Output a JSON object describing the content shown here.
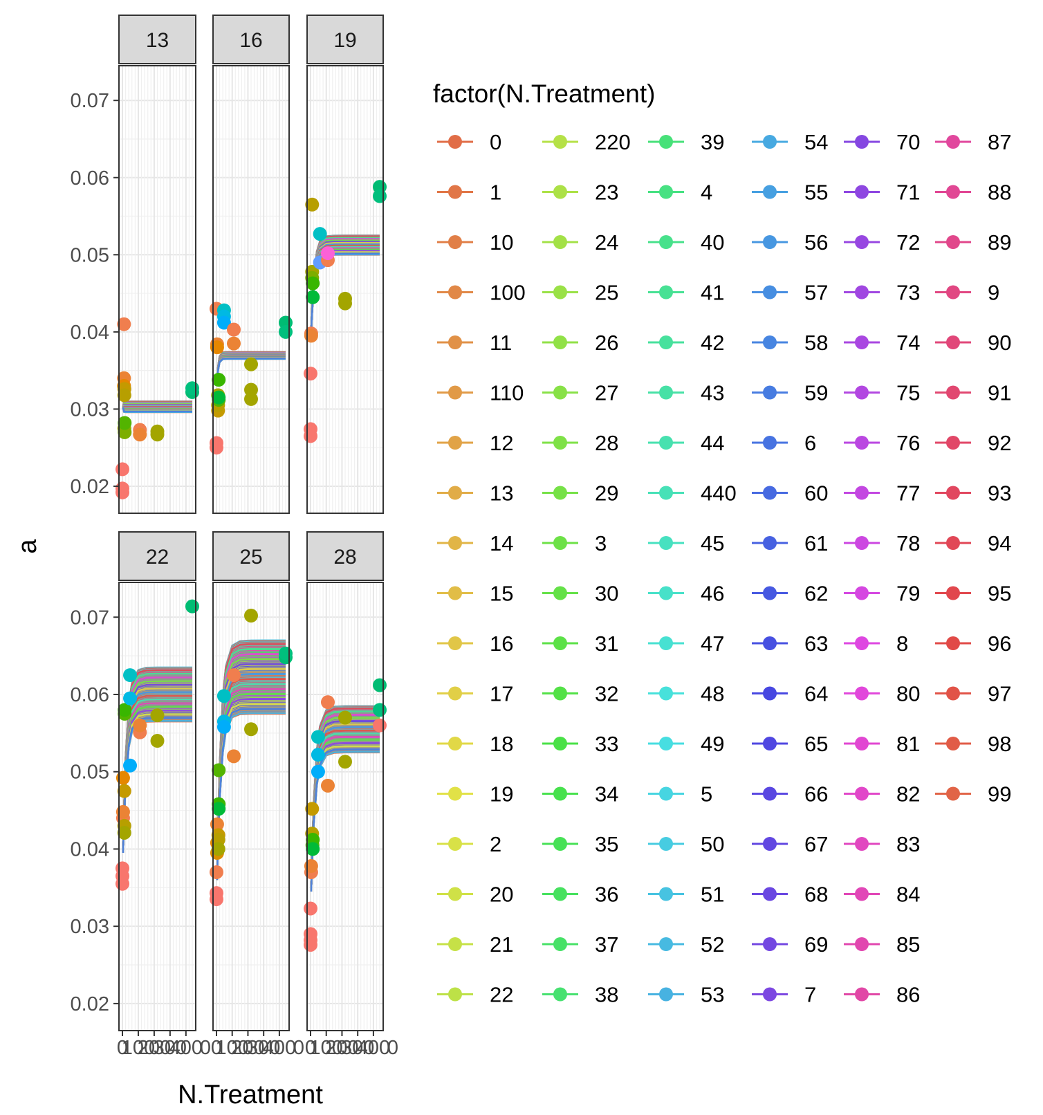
{
  "chart_data": {
    "type": "line",
    "xlabel": "N.Treatment",
    "ylabel": "a",
    "xlim": [
      0,
      440
    ],
    "ylim": [
      0.0165,
      0.0745
    ],
    "y_ticks": [
      0.02,
      0.03,
      0.04,
      0.05,
      0.06,
      0.07
    ],
    "y_tick_labels": [
      "0.02",
      "0.03",
      "0.04",
      "0.05",
      "0.06",
      "0.07"
    ],
    "x_ticks": [
      0,
      100,
      200,
      300,
      400
    ],
    "x_tick_labels": [
      "0",
      "100",
      "200",
      "300",
      "400"
    ],
    "x_tick_label_suffix": "0",
    "grid": true,
    "legend": {
      "title": "factor(N.Treatment)",
      "placement": "right",
      "entries": [
        "0",
        "1",
        "10",
        "100",
        "11",
        "110",
        "12",
        "13",
        "14",
        "15",
        "16",
        "17",
        "18",
        "19",
        "2",
        "20",
        "21",
        "22",
        "220",
        "23",
        "24",
        "25",
        "26",
        "27",
        "28",
        "29",
        "3",
        "30",
        "31",
        "32",
        "33",
        "34",
        "35",
        "36",
        "37",
        "38",
        "39",
        "4",
        "40",
        "41",
        "42",
        "43",
        "44",
        "440",
        "45",
        "46",
        "47",
        "48",
        "49",
        "5",
        "50",
        "51",
        "52",
        "53",
        "54",
        "55",
        "56",
        "57",
        "58",
        "59",
        "6",
        "60",
        "61",
        "62",
        "63",
        "64",
        "65",
        "66",
        "67",
        "68",
        "69",
        "7",
        "70",
        "71",
        "72",
        "73",
        "74",
        "75",
        "76",
        "77",
        "78",
        "79",
        "8",
        "80",
        "81",
        "82",
        "83",
        "84",
        "85",
        "86",
        "87",
        "88",
        "89",
        "9",
        "90",
        "91",
        "92",
        "93",
        "94",
        "95",
        "96",
        "97",
        "98",
        "99"
      ]
    },
    "panels": [
      {
        "label": "13",
        "curve": {
          "x0": 4,
          "y0": 0.0302,
          "plateau_lo": 0.0296,
          "plateau_hi": 0.031,
          "k": 0.5
        },
        "points": [
          {
            "x": 0,
            "y": 0.0192,
            "c": "#F8766D"
          },
          {
            "x": 0,
            "y": 0.0197,
            "c": "#F8766D"
          },
          {
            "x": 0,
            "y": 0.0222,
            "c": "#F8766D"
          },
          {
            "x": 10,
            "y": 0.041,
            "c": "#F07E4E"
          },
          {
            "x": 10,
            "y": 0.034,
            "c": "#EB8335"
          },
          {
            "x": 10,
            "y": 0.033,
            "c": "#E58700"
          },
          {
            "x": 12,
            "y": 0.0326,
            "c": "#C49A00"
          },
          {
            "x": 12,
            "y": 0.0318,
            "c": "#B79F00"
          },
          {
            "x": 12,
            "y": 0.0275,
            "c": "#99A800"
          },
          {
            "x": 14,
            "y": 0.027,
            "c": "#7CAE00"
          },
          {
            "x": 14,
            "y": 0.0282,
            "c": "#53B400"
          },
          {
            "x": 110,
            "y": 0.0273,
            "c": "#F07E4E"
          },
          {
            "x": 110,
            "y": 0.0267,
            "c": "#EB8335"
          },
          {
            "x": 220,
            "y": 0.0271,
            "c": "#A3A500"
          },
          {
            "x": 220,
            "y": 0.0267,
            "c": "#A3A500"
          },
          {
            "x": 440,
            "y": 0.0322,
            "c": "#00BC73"
          },
          {
            "x": 440,
            "y": 0.0327,
            "c": "#00BF7D"
          }
        ]
      },
      {
        "label": "16",
        "curve": {
          "x0": 4,
          "y0": 0.0335,
          "plateau_lo": 0.0365,
          "plateau_hi": 0.0374,
          "k": 0.12
        },
        "points": [
          {
            "x": 0,
            "y": 0.025,
            "c": "#F8766D"
          },
          {
            "x": 0,
            "y": 0.0256,
            "c": "#F8766D"
          },
          {
            "x": 0,
            "y": 0.043,
            "c": "#F07E4E"
          },
          {
            "x": 4,
            "y": 0.0384,
            "c": "#EB8335"
          },
          {
            "x": 4,
            "y": 0.038,
            "c": "#E58700"
          },
          {
            "x": 10,
            "y": 0.0298,
            "c": "#C49A00"
          },
          {
            "x": 10,
            "y": 0.0305,
            "c": "#B79F00"
          },
          {
            "x": 10,
            "y": 0.0318,
            "c": "#A3A500"
          },
          {
            "x": 14,
            "y": 0.0312,
            "c": "#53B400"
          },
          {
            "x": 14,
            "y": 0.0338,
            "c": "#39B600"
          },
          {
            "x": 14,
            "y": 0.0315,
            "c": "#00BA38"
          },
          {
            "x": 48,
            "y": 0.0428,
            "c": "#00BFC4"
          },
          {
            "x": 48,
            "y": 0.042,
            "c": "#00B9E3"
          },
          {
            "x": 48,
            "y": 0.0412,
            "c": "#00ADFA"
          },
          {
            "x": 110,
            "y": 0.0403,
            "c": "#F07E4E"
          },
          {
            "x": 110,
            "y": 0.0385,
            "c": "#EB8335"
          },
          {
            "x": 220,
            "y": 0.0358,
            "c": "#A3A500"
          },
          {
            "x": 220,
            "y": 0.0325,
            "c": "#A3A500"
          },
          {
            "x": 220,
            "y": 0.0313,
            "c": "#A3A500"
          },
          {
            "x": 440,
            "y": 0.0412,
            "c": "#00BC73"
          },
          {
            "x": 440,
            "y": 0.04,
            "c": "#00BF7D"
          }
        ]
      },
      {
        "label": "19",
        "curve": {
          "x0": 4,
          "y0": 0.04,
          "plateau_lo": 0.05,
          "plateau_hi": 0.0525,
          "k": 0.05
        },
        "points": [
          {
            "x": 0,
            "y": 0.0346,
            "c": "#F8766D"
          },
          {
            "x": 0,
            "y": 0.0265,
            "c": "#F8766D"
          },
          {
            "x": 0,
            "y": 0.0274,
            "c": "#F8766D"
          },
          {
            "x": 4,
            "y": 0.0398,
            "c": "#F07E4E"
          },
          {
            "x": 4,
            "y": 0.0395,
            "c": "#EB8335"
          },
          {
            "x": 10,
            "y": 0.0565,
            "c": "#B79F00"
          },
          {
            "x": 10,
            "y": 0.0478,
            "c": "#A3A500"
          },
          {
            "x": 10,
            "y": 0.047,
            "c": "#7CAE00"
          },
          {
            "x": 14,
            "y": 0.0463,
            "c": "#39B600"
          },
          {
            "x": 14,
            "y": 0.0445,
            "c": "#00BA38"
          },
          {
            "x": 60,
            "y": 0.0527,
            "c": "#00BFC4"
          },
          {
            "x": 60,
            "y": 0.049,
            "c": "#619CFF"
          },
          {
            "x": 110,
            "y": 0.0493,
            "c": "#F07E4E"
          },
          {
            "x": 110,
            "y": 0.0502,
            "c": "#FB61D7"
          },
          {
            "x": 220,
            "y": 0.0443,
            "c": "#A3A500"
          },
          {
            "x": 220,
            "y": 0.0437,
            "c": "#A3A500"
          },
          {
            "x": 440,
            "y": 0.0588,
            "c": "#00BC73"
          },
          {
            "x": 440,
            "y": 0.0576,
            "c": "#00BF7D"
          }
        ]
      },
      {
        "label": "22",
        "curve": {
          "x0": 4,
          "y0": 0.0395,
          "plateau_lo": 0.0565,
          "plateau_hi": 0.0635,
          "k": 0.045
        },
        "points": [
          {
            "x": 0,
            "y": 0.0355,
            "c": "#F8766D"
          },
          {
            "x": 0,
            "y": 0.0365,
            "c": "#F8766D"
          },
          {
            "x": 0,
            "y": 0.0375,
            "c": "#F8766D"
          },
          {
            "x": 4,
            "y": 0.044,
            "c": "#F07E4E"
          },
          {
            "x": 4,
            "y": 0.0448,
            "c": "#EB8335"
          },
          {
            "x": 4,
            "y": 0.0492,
            "c": "#E58700"
          },
          {
            "x": 12,
            "y": 0.0475,
            "c": "#C49A00"
          },
          {
            "x": 12,
            "y": 0.043,
            "c": "#B79F00"
          },
          {
            "x": 12,
            "y": 0.0421,
            "c": "#A3A500"
          },
          {
            "x": 14,
            "y": 0.0575,
            "c": "#53B400"
          },
          {
            "x": 14,
            "y": 0.058,
            "c": "#39B600"
          },
          {
            "x": 48,
            "y": 0.0625,
            "c": "#00BFC4"
          },
          {
            "x": 48,
            "y": 0.0595,
            "c": "#00B9E3"
          },
          {
            "x": 48,
            "y": 0.0508,
            "c": "#00ADFA"
          },
          {
            "x": 110,
            "y": 0.0551,
            "c": "#F07E4E"
          },
          {
            "x": 110,
            "y": 0.056,
            "c": "#EB8335"
          },
          {
            "x": 220,
            "y": 0.054,
            "c": "#A3A500"
          },
          {
            "x": 220,
            "y": 0.0573,
            "c": "#A3A500"
          },
          {
            "x": 440,
            "y": 0.0714,
            "c": "#00BC73"
          }
        ]
      },
      {
        "label": "25",
        "curve": {
          "x0": 4,
          "y0": 0.036,
          "plateau_lo": 0.0575,
          "plateau_hi": 0.067,
          "k": 0.04
        },
        "points": [
          {
            "x": 0,
            "y": 0.0335,
            "c": "#F8766D"
          },
          {
            "x": 0,
            "y": 0.0343,
            "c": "#F8766D"
          },
          {
            "x": 0,
            "y": 0.037,
            "c": "#F07E4E"
          },
          {
            "x": 4,
            "y": 0.0432,
            "c": "#EB8335"
          },
          {
            "x": 4,
            "y": 0.0408,
            "c": "#E58700"
          },
          {
            "x": 4,
            "y": 0.0395,
            "c": "#DB8E00"
          },
          {
            "x": 12,
            "y": 0.0418,
            "c": "#C49A00"
          },
          {
            "x": 12,
            "y": 0.0412,
            "c": "#B79F00"
          },
          {
            "x": 12,
            "y": 0.04,
            "c": "#A3A500"
          },
          {
            "x": 14,
            "y": 0.0502,
            "c": "#53B400"
          },
          {
            "x": 14,
            "y": 0.0458,
            "c": "#39B600"
          },
          {
            "x": 14,
            "y": 0.0452,
            "c": "#00BA38"
          },
          {
            "x": 48,
            "y": 0.0598,
            "c": "#00BFC4"
          },
          {
            "x": 48,
            "y": 0.0565,
            "c": "#00B9E3"
          },
          {
            "x": 48,
            "y": 0.0558,
            "c": "#00ADFA"
          },
          {
            "x": 110,
            "y": 0.0625,
            "c": "#F07E4E"
          },
          {
            "x": 110,
            "y": 0.052,
            "c": "#EB8335"
          },
          {
            "x": 220,
            "y": 0.0702,
            "c": "#A3A500"
          },
          {
            "x": 220,
            "y": 0.0555,
            "c": "#A3A500"
          },
          {
            "x": 440,
            "y": 0.0648,
            "c": "#00BC73"
          },
          {
            "x": 440,
            "y": 0.0653,
            "c": "#00BF7D"
          }
        ]
      },
      {
        "label": "28",
        "curve": {
          "x0": 4,
          "y0": 0.0345,
          "plateau_lo": 0.0525,
          "plateau_hi": 0.0585,
          "k": 0.04
        },
        "points": [
          {
            "x": 0,
            "y": 0.0323,
            "c": "#F8766D"
          },
          {
            "x": 0,
            "y": 0.029,
            "c": "#F8766D"
          },
          {
            "x": 0,
            "y": 0.0276,
            "c": "#F8766D"
          },
          {
            "x": 0,
            "y": 0.0282,
            "c": "#F8766D"
          },
          {
            "x": 4,
            "y": 0.037,
            "c": "#F07E4E"
          },
          {
            "x": 4,
            "y": 0.0378,
            "c": "#EB8335"
          },
          {
            "x": 10,
            "y": 0.0452,
            "c": "#C49A00"
          },
          {
            "x": 10,
            "y": 0.042,
            "c": "#B79F00"
          },
          {
            "x": 12,
            "y": 0.0405,
            "c": "#53B400"
          },
          {
            "x": 14,
            "y": 0.0412,
            "c": "#39B600"
          },
          {
            "x": 14,
            "y": 0.04,
            "c": "#00BA38"
          },
          {
            "x": 48,
            "y": 0.0545,
            "c": "#00BFC4"
          },
          {
            "x": 48,
            "y": 0.0522,
            "c": "#00B9E3"
          },
          {
            "x": 48,
            "y": 0.05,
            "c": "#00ADFA"
          },
          {
            "x": 110,
            "y": 0.059,
            "c": "#F07E4E"
          },
          {
            "x": 110,
            "y": 0.0482,
            "c": "#EB8335"
          },
          {
            "x": 220,
            "y": 0.057,
            "c": "#A3A500"
          },
          {
            "x": 220,
            "y": 0.0513,
            "c": "#A3A500"
          },
          {
            "x": 440,
            "y": 0.0612,
            "c": "#00BC73"
          },
          {
            "x": 440,
            "y": 0.058,
            "c": "#00BF7D"
          },
          {
            "x": 440,
            "y": 0.056,
            "c": "#F8766D"
          }
        ]
      }
    ]
  }
}
